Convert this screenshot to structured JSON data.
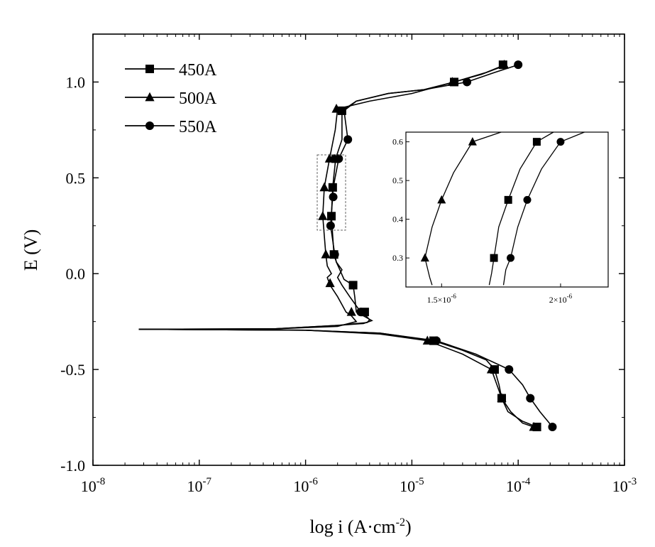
{
  "chart_data": [
    {
      "id": "main",
      "type": "line",
      "xscale": "log",
      "xlabel": "log i (A·cm",
      "xlabel_sup": "-2",
      "xlabel_tail": ")",
      "ylabel": "E (V)",
      "xlim": [
        1e-08,
        0.001
      ],
      "ylim": [
        -1.0,
        1.25
      ],
      "xticks": [
        {
          "base": "10",
          "exp": "-8"
        },
        {
          "base": "10",
          "exp": "-7"
        },
        {
          "base": "10",
          "exp": "-6"
        },
        {
          "base": "10",
          "exp": "-5"
        },
        {
          "base": "10",
          "exp": "-4"
        },
        {
          "base": "10",
          "exp": "-3"
        }
      ],
      "yticks": [
        "1.0",
        "0.5",
        "0.0",
        "-0.5",
        "-1.0"
      ],
      "legend_position": "top-left",
      "series": [
        {
          "name": "450A",
          "marker": "square",
          "points": [
            [
              2.7e-08,
              -0.29
            ],
            [
              5e-07,
              -0.288
            ],
            [
              2e-06,
              -0.27
            ],
            [
              3.5e-06,
              -0.26
            ],
            [
              4.2e-06,
              -0.245
            ],
            [
              3.5e-06,
              -0.22
            ],
            [
              3e-06,
              -0.2
            ],
            [
              2.9e-06,
              -0.12
            ],
            [
              2.8e-06,
              -0.06
            ],
            [
              2.3e-06,
              -0.03
            ],
            [
              2.1e-06,
              0.02
            ],
            [
              1.95e-06,
              0.06
            ],
            [
              1.85e-06,
              0.1
            ],
            [
              1.75e-06,
              0.3
            ],
            [
              1.8e-06,
              0.45
            ],
            [
              1.92e-06,
              0.6
            ],
            [
              2.2e-06,
              0.7
            ],
            [
              2.2e-06,
              0.85
            ],
            [
              3e-06,
              0.9
            ],
            [
              6e-06,
              0.94
            ],
            [
              1.3e-05,
              0.96
            ],
            [
              2.5e-05,
              1.0
            ],
            [
              4.5e-05,
              1.04
            ],
            [
              7e-05,
              1.08
            ],
            [
              7.5e-05,
              1.09
            ]
          ],
          "markers": [
            [
              7.2e-05,
              1.09
            ],
            [
              2.5e-05,
              1.0
            ],
            [
              2.2e-06,
              0.85
            ],
            [
              1.92e-06,
              0.6
            ],
            [
              1.8e-06,
              0.45
            ],
            [
              1.75e-06,
              0.3
            ],
            [
              1.85e-06,
              0.1
            ],
            [
              2.8e-06,
              -0.06
            ],
            [
              3.6e-06,
              -0.2
            ],
            [
              1.6e-05,
              -0.35
            ],
            [
              6e-05,
              -0.5
            ],
            [
              7e-05,
              -0.65
            ],
            [
              0.00015,
              -0.8
            ]
          ],
          "cathodic": [
            [
              2.7e-08,
              -0.29
            ],
            [
              1e-06,
              -0.295
            ],
            [
              5e-06,
              -0.31
            ],
            [
              1.6e-05,
              -0.35
            ],
            [
              3e-05,
              -0.4
            ],
            [
              5e-05,
              -0.45
            ],
            [
              6e-05,
              -0.5
            ],
            [
              6.6e-05,
              -0.58
            ],
            [
              7e-05,
              -0.65
            ],
            [
              8e-05,
              -0.72
            ],
            [
              0.00011,
              -0.77
            ],
            [
              0.00015,
              -0.8
            ]
          ]
        },
        {
          "name": "500A",
          "marker": "triangle",
          "points": [
            [
              2.7e-08,
              -0.29
            ],
            [
              5e-07,
              -0.288
            ],
            [
              2e-06,
              -0.275
            ],
            [
              3e-06,
              -0.25
            ],
            [
              2.7e-06,
              -0.22
            ],
            [
              2.4e-06,
              -0.2
            ],
            [
              2e-06,
              -0.12
            ],
            [
              1.7e-06,
              -0.06
            ],
            [
              1.6e-06,
              -0.02
            ],
            [
              1.75e-06,
              0.0
            ],
            [
              1.6e-06,
              0.04
            ],
            [
              1.55e-06,
              0.1
            ],
            [
              1.45e-06,
              0.3
            ],
            [
              1.5e-06,
              0.45
            ],
            [
              1.68e-06,
              0.6
            ],
            [
              1.9e-06,
              0.75
            ],
            [
              2e-06,
              0.86
            ],
            [
              4e-06,
              0.9
            ],
            [
              1e-05,
              0.94
            ],
            [
              2.5e-05,
              1.0
            ],
            [
              5e-05,
              1.05
            ],
            [
              7.5e-05,
              1.09
            ]
          ],
          "markers": [
            [
              7.4e-05,
              1.09
            ],
            [
              2.4e-05,
              1.0
            ],
            [
              1.95e-06,
              0.86
            ],
            [
              1.68e-06,
              0.6
            ],
            [
              1.5e-06,
              0.45
            ],
            [
              1.45e-06,
              0.3
            ],
            [
              1.55e-06,
              0.1
            ],
            [
              1.7e-06,
              -0.05
            ],
            [
              2.7e-06,
              -0.2
            ],
            [
              1.4e-05,
              -0.35
            ],
            [
              5.6e-05,
              -0.5
            ],
            [
              7e-05,
              -0.65
            ],
            [
              0.00014,
              -0.8
            ]
          ],
          "cathodic": [
            [
              2.7e-08,
              -0.29
            ],
            [
              1e-06,
              -0.295
            ],
            [
              5e-06,
              -0.315
            ],
            [
              1.4e-05,
              -0.35
            ],
            [
              3e-05,
              -0.42
            ],
            [
              5.6e-05,
              -0.5
            ],
            [
              6.5e-05,
              -0.6
            ],
            [
              7e-05,
              -0.65
            ],
            [
              8.5e-05,
              -0.72
            ],
            [
              0.00011,
              -0.78
            ],
            [
              0.00014,
              -0.8
            ]
          ]
        },
        {
          "name": "550A",
          "marker": "circle",
          "points": [
            [
              2.7e-08,
              -0.29
            ],
            [
              5e-07,
              -0.288
            ],
            [
              2e-06,
              -0.27
            ],
            [
              3.8e-06,
              -0.255
            ],
            [
              4e-06,
              -0.24
            ],
            [
              3.7e-06,
              -0.22
            ],
            [
              3.3e-06,
              -0.2
            ],
            [
              2.6e-06,
              -0.12
            ],
            [
              2.2e-06,
              -0.06
            ],
            [
              2e-06,
              -0.02
            ],
            [
              2.2e-06,
              0.02
            ],
            [
              1.95e-06,
              0.06
            ],
            [
              1.88e-06,
              0.1
            ],
            [
              1.72e-06,
              0.25
            ],
            [
              1.82e-06,
              0.45
            ],
            [
              2.05e-06,
              0.6
            ],
            [
              2.5e-06,
              0.7
            ],
            [
              2.3e-06,
              0.85
            ],
            [
              3e-06,
              0.9
            ],
            [
              6e-06,
              0.94
            ],
            [
              1.3e-05,
              0.96
            ],
            [
              3.3e-05,
              1.0
            ],
            [
              6e-05,
              1.05
            ],
            [
              0.0001,
              1.09
            ]
          ],
          "markers": [
            [
              0.0001,
              1.09
            ],
            [
              3.3e-05,
              1.0
            ],
            [
              2.5e-06,
              0.7
            ],
            [
              2.05e-06,
              0.6
            ],
            [
              1.82e-06,
              0.4
            ],
            [
              1.72e-06,
              0.25
            ],
            [
              1.88e-06,
              0.1
            ],
            [
              3.3e-06,
              -0.2
            ],
            [
              1.7e-05,
              -0.35
            ],
            [
              8.2e-05,
              -0.5
            ],
            [
              0.00013,
              -0.65
            ],
            [
              0.00021,
              -0.8
            ]
          ],
          "cathodic": [
            [
              2.7e-08,
              -0.29
            ],
            [
              1e-06,
              -0.295
            ],
            [
              5e-06,
              -0.31
            ],
            [
              1.7e-05,
              -0.35
            ],
            [
              4e-05,
              -0.42
            ],
            [
              8.2e-05,
              -0.5
            ],
            [
              0.00011,
              -0.58
            ],
            [
              0.00013,
              -0.65
            ],
            [
              0.00016,
              -0.72
            ],
            [
              0.00019,
              -0.77
            ],
            [
              0.00021,
              -0.8
            ]
          ]
        }
      ]
    },
    {
      "id": "inset",
      "type": "line",
      "xscale": "linear",
      "xlim": [
        1.35e-06,
        2.2e-06
      ],
      "ylim": [
        0.225,
        0.625
      ],
      "xticks": [
        {
          "value": 1.5e-06,
          "label": "1.5×10",
          "exp": "-6"
        },
        {
          "value": 2e-06,
          "label": "2×10",
          "exp": "-6"
        }
      ],
      "yticks": [
        "0.6",
        "0.5",
        "0.4",
        "0.3"
      ],
      "series": [
        {
          "name": "500A",
          "marker": "triangle",
          "points": [
            [
              1.46e-06,
              0.23
            ],
            [
              1.45e-06,
              0.25
            ],
            [
              1.43e-06,
              0.3
            ],
            [
              1.46e-06,
              0.38
            ],
            [
              1.5e-06,
              0.45
            ],
            [
              1.55e-06,
              0.52
            ],
            [
              1.63e-06,
              0.6
            ],
            [
              1.75e-06,
              0.625
            ]
          ],
          "markers": [
            [
              1.43e-06,
              0.3
            ],
            [
              1.5e-06,
              0.45
            ],
            [
              1.63e-06,
              0.6
            ]
          ]
        },
        {
          "name": "450A",
          "marker": "square",
          "points": [
            [
              1.7e-06,
              0.23
            ],
            [
              1.71e-06,
              0.26
            ],
            [
              1.72e-06,
              0.3
            ],
            [
              1.74e-06,
              0.38
            ],
            [
              1.78e-06,
              0.45
            ],
            [
              1.83e-06,
              0.53
            ],
            [
              1.9e-06,
              0.6
            ],
            [
              1.97e-06,
              0.625
            ]
          ],
          "markers": [
            [
              1.72e-06,
              0.3
            ],
            [
              1.78e-06,
              0.45
            ],
            [
              1.9e-06,
              0.6
            ]
          ]
        },
        {
          "name": "550A",
          "marker": "circle",
          "points": [
            [
              1.76e-06,
              0.23
            ],
            [
              1.77e-06,
              0.27
            ],
            [
              1.79e-06,
              0.3
            ],
            [
              1.82e-06,
              0.38
            ],
            [
              1.86e-06,
              0.45
            ],
            [
              1.92e-06,
              0.53
            ],
            [
              2e-06,
              0.6
            ],
            [
              2.1e-06,
              0.625
            ]
          ],
          "markers": [
            [
              1.79e-06,
              0.3
            ],
            [
              1.86e-06,
              0.45
            ],
            [
              2e-06,
              0.6
            ]
          ]
        }
      ]
    }
  ]
}
